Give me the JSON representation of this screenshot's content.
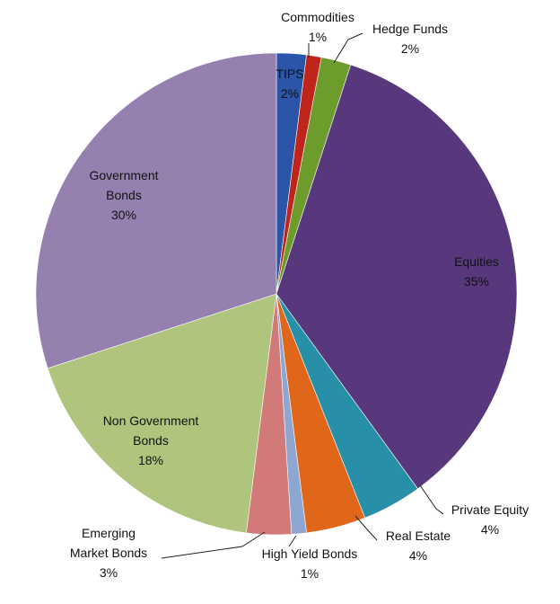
{
  "chart_data": {
    "type": "pie",
    "title": "",
    "start": "12 o'clock",
    "direction": "clockwise",
    "slices": [
      {
        "name": "TIPS",
        "label": "TIPS",
        "value": 2,
        "value_label": "2%",
        "color": "#2A55A8"
      },
      {
        "name": "Commodities",
        "label": "Commodities",
        "value": 1,
        "value_label": "1%",
        "color": "#C0251C"
      },
      {
        "name": "Hedge Funds",
        "label": "Hedge Funds",
        "value": 2,
        "value_label": "2%",
        "color": "#6E9C2C"
      },
      {
        "name": "Equities",
        "label": "Equities",
        "value": 35,
        "value_label": "35%",
        "color": "#58387C"
      },
      {
        "name": "Private Equity",
        "label": "Private Equity",
        "value": 4,
        "value_label": "4%",
        "color": "#2790A8"
      },
      {
        "name": "Real Estate",
        "label": "Real Estate",
        "value": 4,
        "value_label": "4%",
        "color": "#E0661A"
      },
      {
        "name": "High Yield Bonds",
        "label": "High Yield Bonds",
        "value": 1,
        "value_label": "1%",
        "color": "#8EA7D2"
      },
      {
        "name": "Emerging Market Bonds",
        "label": "Emerging\nMarket Bonds",
        "value": 3,
        "value_label": "3%",
        "color": "#D27A7A"
      },
      {
        "name": "Non Government Bonds",
        "label": "Non Government\nBonds",
        "value": 18,
        "value_label": "18%",
        "color": "#AFC47D"
      },
      {
        "name": "Government Bonds",
        "label": "Government\nBonds",
        "value": 30,
        "value_label": "30%",
        "color": "#9580B0"
      }
    ]
  }
}
